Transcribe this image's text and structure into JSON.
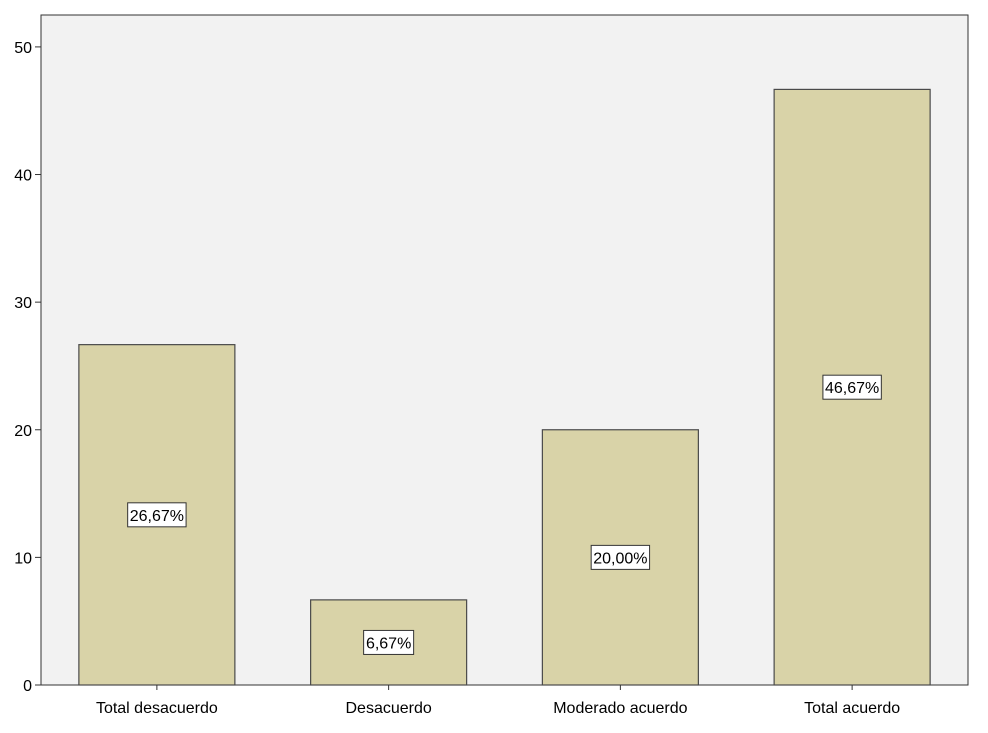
{
  "chart_data": {
    "type": "bar",
    "categories": [
      "Total desacuerdo",
      "Desacuerdo",
      "Moderado acuerdo",
      "Total acuerdo"
    ],
    "values": [
      26.67,
      6.67,
      20.0,
      46.67
    ],
    "data_labels": [
      "26,67%",
      "6,67%",
      "20,00%",
      "46,67%"
    ],
    "yticks": [
      "0",
      "10",
      "20",
      "30",
      "40",
      "50"
    ],
    "ylim": [
      0,
      52.5
    ],
    "grid": false,
    "legend": "none",
    "title": "",
    "xlabel": "",
    "ylabel": ""
  },
  "colors": {
    "plot_background": "#f2f2f2",
    "bar_fill": "#d9d3a8",
    "bar_stroke": "#4a4a4a",
    "axis": "#333333",
    "label_box_fill": "#ffffff",
    "label_box_stroke": "#333333"
  }
}
